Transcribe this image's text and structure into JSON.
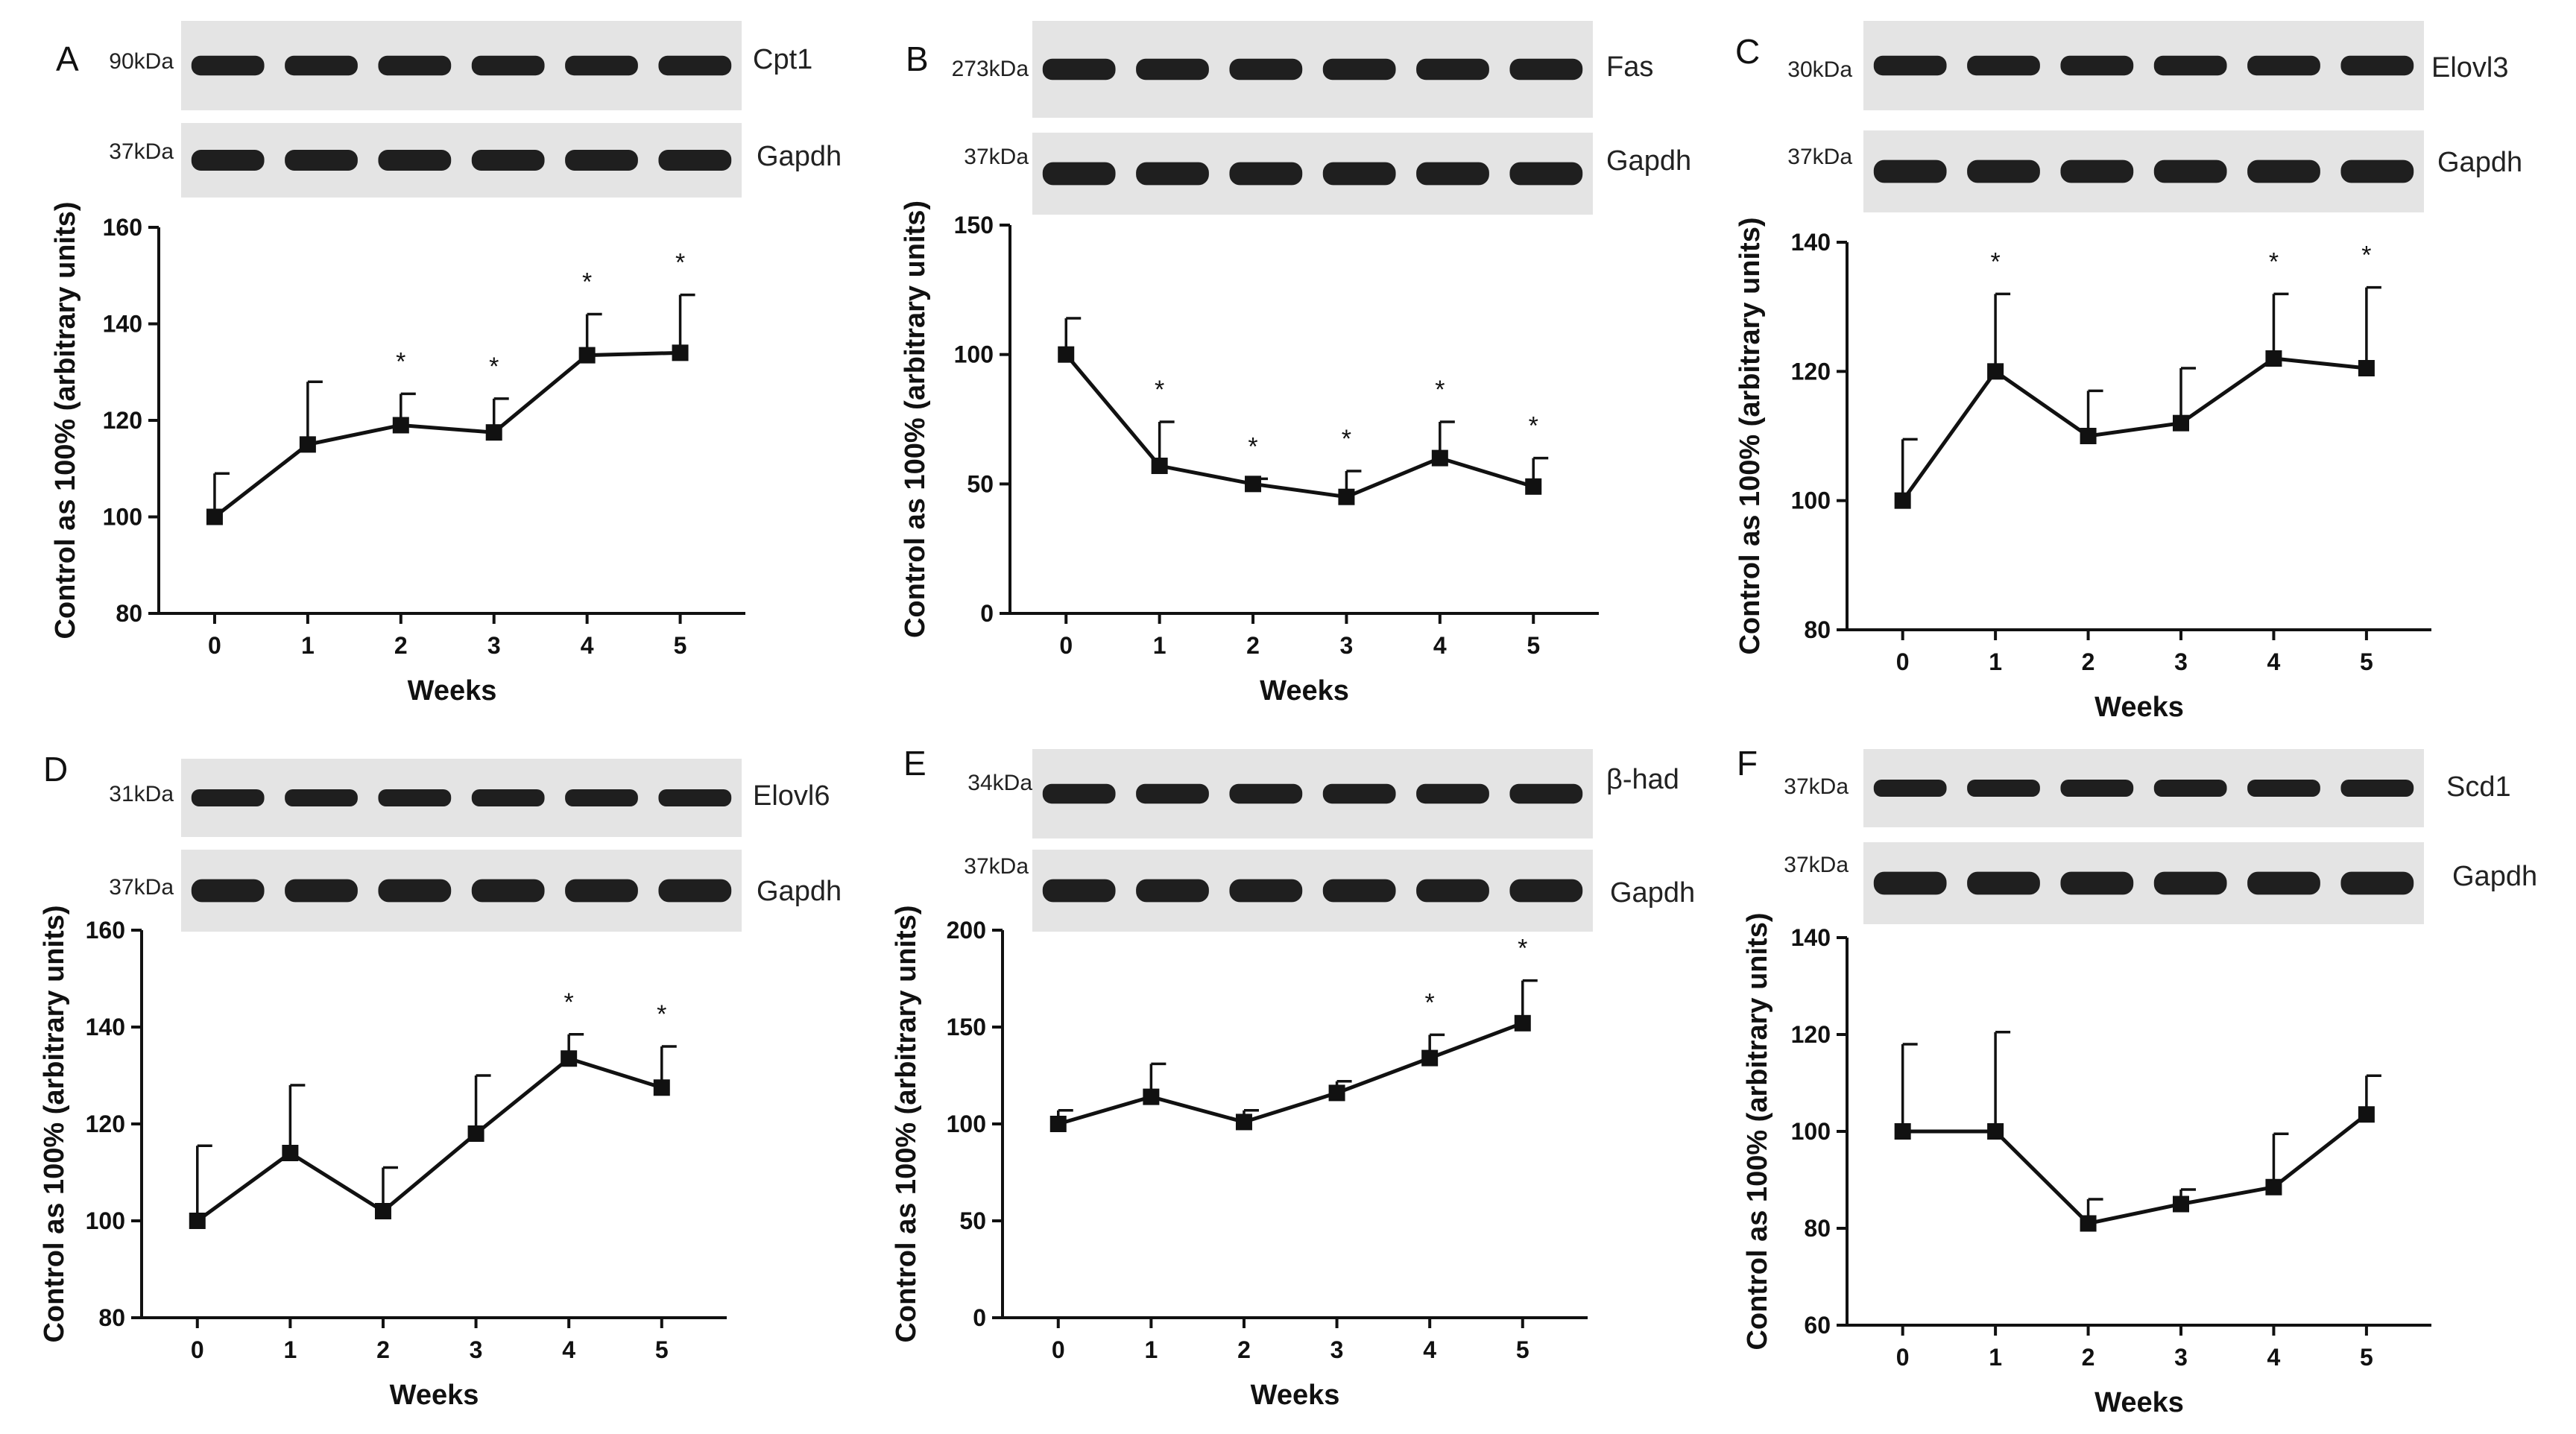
{
  "figure": {
    "panels": [
      {
        "letter": "A",
        "blots": [
          {
            "protein": "Cpt1",
            "kda": "90kDa"
          },
          {
            "protein": "Gapdh",
            "kda": "37kDa"
          }
        ]
      },
      {
        "letter": "B",
        "blots": [
          {
            "protein": "Fas",
            "kda": "273kDa"
          },
          {
            "protein": "Gapdh",
            "kda": "37kDa"
          }
        ]
      },
      {
        "letter": "C",
        "blots": [
          {
            "protein": "Elovl3",
            "kda": "30kDa"
          },
          {
            "protein": "Gapdh",
            "kda": "37kDa"
          }
        ]
      },
      {
        "letter": "D",
        "blots": [
          {
            "protein": "Elovl6",
            "kda": "31kDa"
          },
          {
            "protein": "Gapdh",
            "kda": "37kDa"
          }
        ]
      },
      {
        "letter": "E",
        "blots": [
          {
            "protein": "β-had",
            "kda": "34kDa"
          },
          {
            "protein": "Gapdh",
            "kda": "37kDa"
          }
        ]
      },
      {
        "letter": "F",
        "blots": [
          {
            "protein": "Scd1",
            "kda": "37kDa"
          },
          {
            "protein": "Gapdh",
            "kda": "37kDa"
          }
        ]
      }
    ]
  },
  "chart_data": [
    {
      "type": "line",
      "panel": "A",
      "xlabel": "Weeks",
      "ylabel": "Control as 100% (arbitrary units)",
      "x": [
        0,
        1,
        2,
        3,
        4,
        5
      ],
      "values": [
        100,
        115,
        119,
        117.5,
        133.5,
        134
      ],
      "error": [
        9,
        13,
        6.5,
        7,
        8.5,
        12
      ],
      "significant": [
        false,
        false,
        true,
        true,
        true,
        true
      ],
      "ylim": [
        80,
        160
      ],
      "yticks": [
        80,
        100,
        120,
        140,
        160
      ]
    },
    {
      "type": "line",
      "panel": "B",
      "xlabel": "Weeks",
      "ylabel": "Control as 100% (arbitrary units)",
      "x": [
        0,
        1,
        2,
        3,
        4,
        5
      ],
      "values": [
        100,
        57,
        50,
        45,
        60,
        49
      ],
      "error": [
        14,
        17,
        2,
        10,
        14,
        11
      ],
      "significant": [
        false,
        true,
        true,
        true,
        true,
        true
      ],
      "ylim": [
        0,
        150
      ],
      "yticks": [
        0,
        50,
        100,
        150
      ]
    },
    {
      "type": "line",
      "panel": "C",
      "xlabel": "Weeks",
      "ylabel": "Control as 100% (arbitrary units)",
      "x": [
        0,
        1,
        2,
        3,
        4,
        5
      ],
      "values": [
        100,
        120,
        110,
        112,
        122,
        120.5
      ],
      "error": [
        9.5,
        12,
        7,
        8.5,
        10,
        12.5
      ],
      "significant": [
        false,
        true,
        false,
        false,
        true,
        true
      ],
      "ylim": [
        80,
        140
      ],
      "yticks": [
        80,
        100,
        120,
        140
      ]
    },
    {
      "type": "line",
      "panel": "D",
      "xlabel": "Weeks",
      "ylabel": "Control as 100% (arbitrary units)",
      "x": [
        0,
        1,
        2,
        3,
        4,
        5
      ],
      "values": [
        100,
        114,
        102,
        118,
        133.5,
        127.5
      ],
      "error": [
        15.5,
        14,
        9,
        12,
        5,
        8.5
      ],
      "significant": [
        false,
        false,
        false,
        false,
        true,
        true
      ],
      "ylim": [
        80,
        160
      ],
      "yticks": [
        80,
        100,
        120,
        140,
        160
      ]
    },
    {
      "type": "line",
      "panel": "E",
      "xlabel": "Weeks",
      "ylabel": "Control as 100% (arbitrary units)",
      "x": [
        0,
        1,
        2,
        3,
        4,
        5
      ],
      "values": [
        100,
        114,
        101,
        116,
        134,
        152
      ],
      "error": [
        7,
        17,
        6,
        6,
        12,
        22
      ],
      "significant": [
        false,
        false,
        false,
        false,
        true,
        true
      ],
      "ylim": [
        0,
        200
      ],
      "yticks": [
        0,
        50,
        100,
        150,
        200
      ]
    },
    {
      "type": "line",
      "panel": "F",
      "xlabel": "Weeks",
      "ylabel": "Control as 100% (arbitrary units)",
      "x": [
        0,
        1,
        2,
        3,
        4,
        5
      ],
      "values": [
        100,
        100,
        81,
        85,
        88.5,
        103.5
      ],
      "error": [
        18,
        20.5,
        5,
        3,
        11,
        8
      ],
      "significant": [
        false,
        false,
        false,
        false,
        false,
        false
      ],
      "ylim": [
        60,
        140
      ],
      "yticks": [
        60,
        80,
        100,
        120,
        140
      ]
    }
  ]
}
